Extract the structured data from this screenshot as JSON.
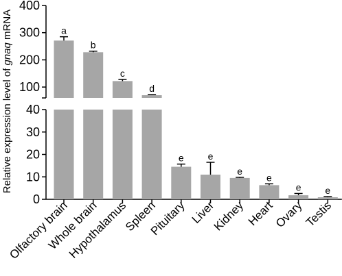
{
  "chart_data": {
    "type": "bar",
    "title": "",
    "xlabel": "",
    "ylabel": {
      "before": "Relative expression level of ",
      "italic": "gnaq",
      "after": " mRNA"
    },
    "broken_axis": {
      "lower_range": [
        0,
        40
      ],
      "upper_range": [
        60,
        400
      ],
      "lower_ticks": [
        0,
        10,
        20,
        30,
        40
      ],
      "upper_ticks": [
        100,
        200,
        300,
        400
      ]
    },
    "categories": [
      "Olfactory brain",
      "Whole brain",
      "Hypothalamus",
      "Spleen",
      "Pituitary",
      "Liver",
      "Kidney",
      "Heart",
      "Ovary",
      "Testis"
    ],
    "values": [
      271,
      228,
      122,
      70,
      14.5,
      11,
      9.5,
      6.3,
      1.8,
      0.9
    ],
    "errors": [
      14,
      4,
      6,
      2,
      1.2,
      5.5,
      0.3,
      0.6,
      0.8,
      0.3
    ],
    "significance_letters": [
      "a",
      "b",
      "c",
      "d",
      "e",
      "e",
      "e",
      "e",
      "e",
      "e"
    ],
    "colors": {
      "bar": "#a6a6a6",
      "axis": "#000000"
    }
  }
}
